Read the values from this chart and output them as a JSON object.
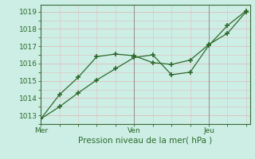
{
  "line1_x": [
    0,
    1,
    2,
    3,
    4,
    5,
    6,
    7,
    8,
    9,
    10,
    11
  ],
  "line1_y": [
    1012.8,
    1014.2,
    1015.2,
    1016.4,
    1016.55,
    1016.45,
    1016.05,
    1015.95,
    1016.2,
    1017.1,
    1017.75,
    1019.0
  ],
  "line2_x": [
    0,
    1,
    2,
    3,
    4,
    5,
    6,
    7,
    8,
    9,
    10,
    11
  ],
  "line2_y": [
    1012.8,
    1013.5,
    1014.3,
    1015.05,
    1015.7,
    1016.35,
    1016.5,
    1015.35,
    1015.5,
    1017.05,
    1018.2,
    1019.05
  ],
  "line_color": "#2d6a2d",
  "bg_color": "#cceee4",
  "grid_major_color": "#ddbfbf",
  "grid_minor_color": "#ddbfbf",
  "xlabel": "Pression niveau de la mer( hPa )",
  "yticks": [
    1013,
    1014,
    1015,
    1016,
    1017,
    1018,
    1019
  ],
  "xtick_positions": [
    0,
    5,
    9
  ],
  "xtick_labels": [
    "Mer",
    "Ven",
    "Jeu"
  ],
  "vline_x": [
    0,
    5,
    9
  ],
  "ylim": [
    1012.5,
    1019.4
  ],
  "xlim": [
    0,
    11.2
  ],
  "xlabel_fontsize": 7.5,
  "tick_fontsize": 6.5
}
